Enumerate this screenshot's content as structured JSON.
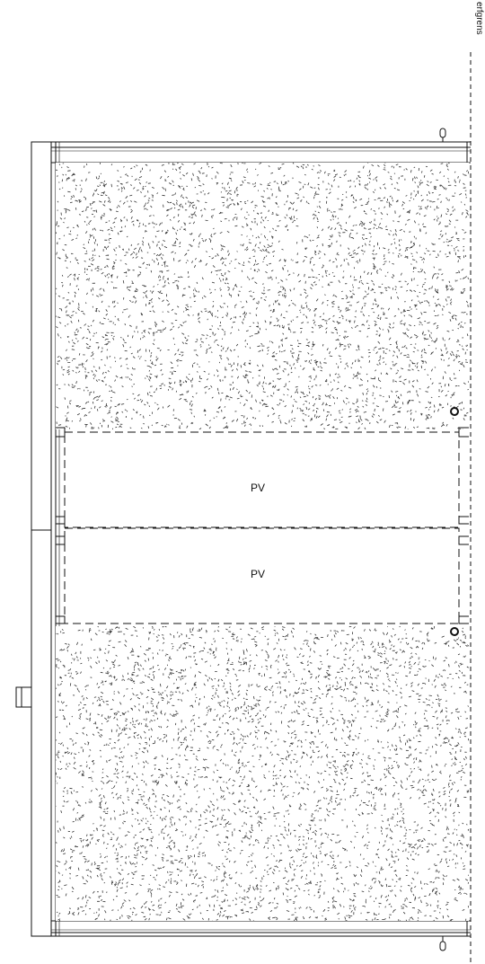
{
  "labels": {
    "boundary": "erfgrens",
    "panel_top": "PV",
    "panel_bottom": "PV"
  },
  "colors": {
    "line": "#111111",
    "background": "#ffffff",
    "hatch": "#333333"
  },
  "hatch": "gravel-stipple"
}
